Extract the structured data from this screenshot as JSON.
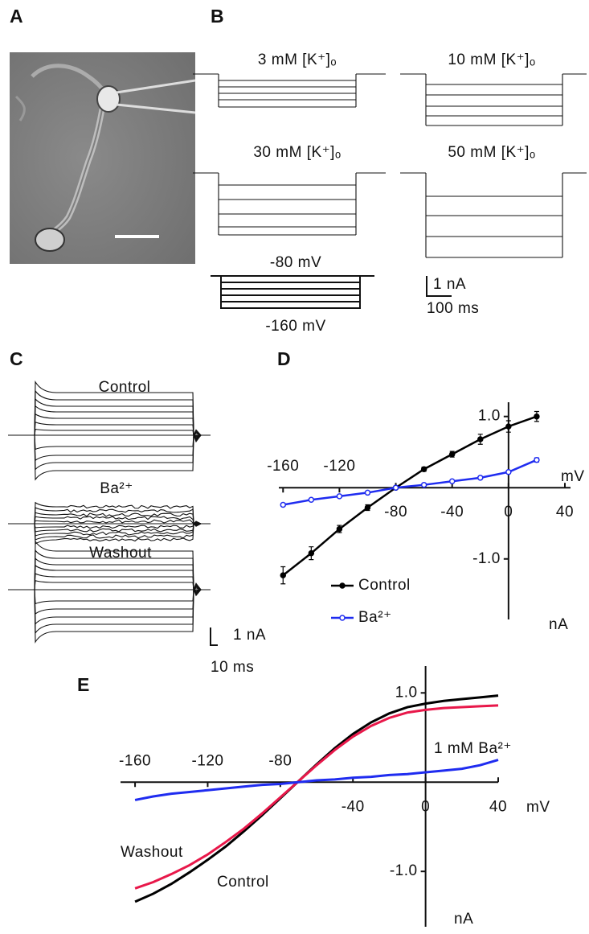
{
  "panel_a": {
    "label": "A"
  },
  "panel_b": {
    "label": "B",
    "traces": [
      "3 mM [K⁺]ₒ",
      "10 mM [K⁺]ₒ",
      "30 mM [K⁺]ₒ",
      "50 mM [K⁺]ₒ"
    ],
    "protocol": [
      "-80 mV",
      "-160 mV"
    ],
    "scale": [
      "1 nA",
      "100 ms"
    ]
  },
  "panel_c": {
    "label": "C",
    "traces": [
      "Control",
      "Ba²⁺",
      "Washout"
    ],
    "scale": [
      "1 nA",
      "10 ms"
    ]
  },
  "chart_data": [
    {
      "type": "line",
      "panel": "D",
      "x": [
        -160,
        -140,
        -120,
        -100,
        -80,
        -60,
        -40,
        -20,
        0,
        20
      ],
      "series": [
        {
          "name": "Control",
          "color": "#000000",
          "marker": "filled",
          "values": [
            -1.23,
            -0.92,
            -0.58,
            -0.28,
            0,
            0.26,
            0.47,
            0.68,
            0.86,
            1.0
          ],
          "errors": [
            0.12,
            0.09,
            0.05,
            0.04,
            0.02,
            0.03,
            0.04,
            0.07,
            0.08,
            0.07
          ]
        },
        {
          "name": "Ba²⁺",
          "color": "#1f2cf0",
          "marker": "open",
          "values": [
            -0.24,
            -0.17,
            -0.12,
            -0.07,
            0,
            0.04,
            0.09,
            0.14,
            0.22,
            0.39
          ],
          "errors": [
            0.02,
            0.01,
            0.01,
            0.01,
            0.01,
            0.01,
            0.01,
            0.01,
            0.02,
            0.03
          ]
        }
      ],
      "xlim": [
        -163,
        44
      ],
      "ylim": [
        -1.85,
        1.2
      ],
      "xticks": [
        -160,
        -120,
        -80,
        -40,
        0,
        40
      ],
      "yticks": [
        {
          "value": 1,
          "label": "1.0"
        },
        {
          "value": -1,
          "label": "-1.0"
        }
      ],
      "x_label": "mV",
      "y_label": "nA",
      "legend": "lower left"
    },
    {
      "type": "line",
      "panel": "E",
      "x": [
        -160,
        -150,
        -140,
        -130,
        -120,
        -110,
        -100,
        -90,
        -80,
        -70,
        -60,
        -50,
        -40,
        -30,
        -20,
        -10,
        0,
        10,
        20,
        30,
        40
      ],
      "series": [
        {
          "name": "Control",
          "color": "#000000",
          "values": [
            -1.34,
            -1.25,
            -1.14,
            -1.01,
            -0.87,
            -0.72,
            -0.55,
            -0.37,
            -0.18,
            0.01,
            0.2,
            0.38,
            0.54,
            0.67,
            0.77,
            0.84,
            0.88,
            0.91,
            0.93,
            0.95,
            0.97
          ]
        },
        {
          "name": "Washout",
          "color": "#e8184a",
          "values": [
            -1.19,
            -1.12,
            -1.03,
            -0.93,
            -0.81,
            -0.67,
            -0.52,
            -0.35,
            -0.17,
            0.01,
            0.19,
            0.36,
            0.51,
            0.63,
            0.72,
            0.78,
            0.81,
            0.83,
            0.84,
            0.85,
            0.86
          ]
        },
        {
          "name": "1 mM Ba²⁺",
          "color": "#1f2cf0",
          "values": [
            -0.2,
            -0.16,
            -0.13,
            -0.11,
            -0.09,
            -0.07,
            -0.05,
            -0.03,
            -0.02,
            0,
            0.02,
            0.03,
            0.05,
            0.06,
            0.08,
            0.09,
            0.11,
            0.13,
            0.15,
            0.19,
            0.25
          ]
        }
      ],
      "xlim": [
        -168,
        40
      ],
      "ylim": [
        -1.62,
        1.3
      ],
      "xticks": [
        -160,
        -120,
        -80,
        -40,
        0,
        40
      ],
      "yticks": [
        {
          "value": 1,
          "label": "1.0"
        },
        {
          "value": -1,
          "label": "-1.0"
        }
      ],
      "x_label": "mV",
      "y_label": "nA"
    }
  ]
}
